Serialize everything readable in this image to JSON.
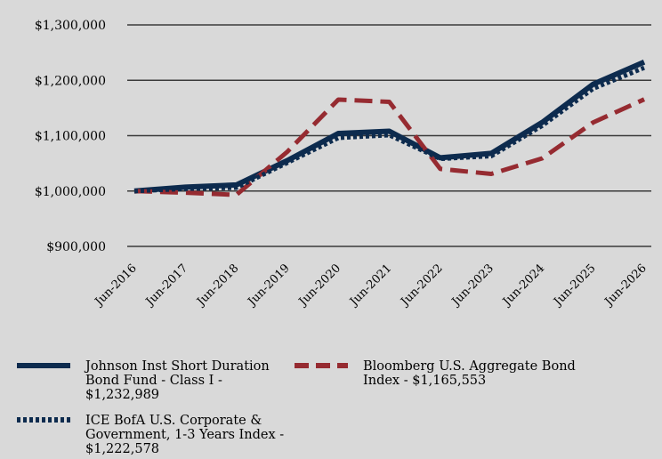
{
  "chart_data": {
    "type": "line",
    "x": [
      "Jun-2016",
      "Jun-2017",
      "Jun-2018",
      "Jun-2019",
      "Jun-2020",
      "Jun-2021",
      "Jun-2022",
      "Jun-2023",
      "Jun-2024",
      "Jun-2025",
      "Jun-2026"
    ],
    "ylim": [
      900000,
      1300000
    ],
    "yticks": [
      "$900,000",
      "$1,000,000",
      "$1,100,000",
      "$1,200,000",
      "$1,300,000"
    ],
    "ytick_values": [
      900000,
      1000000,
      1100000,
      1200000,
      1300000
    ],
    "grid": true,
    "legend_position": "bottom",
    "series": [
      {
        "name": "Johnson Inst Short Duration Bond Fund - Class I - $1,232,989",
        "legend_lines": [
          "Johnson Inst Short Duration",
          "Bond Fund - Class I -",
          "$1,232,989"
        ],
        "color": "#0d2b4e",
        "style": "solid",
        "values": [
          1000000,
          1007000,
          1011000,
          1055000,
          1104000,
          1108000,
          1060000,
          1068000,
          1124000,
          1193000,
          1232989
        ]
      },
      {
        "name": "Bloomberg U.S. Aggregate Bond Index - $1,165,553",
        "legend_lines": [
          "Bloomberg U.S. Aggregate Bond",
          "Index - $1,165,553"
        ],
        "color": "#962b31",
        "style": "dashed",
        "values": [
          1000000,
          997000,
          993000,
          1071000,
          1165000,
          1161000,
          1040000,
          1031000,
          1059000,
          1124000,
          1165553
        ]
      },
      {
        "name": "ICE BofA U.S. Corporate & Government, 1-3 Years Index - $1,222,578",
        "legend_lines": [
          "ICE BofA U.S. Corporate &",
          "Government, 1-3 Years Index -",
          " $1,222,578"
        ],
        "color": "#0d2b4e",
        "style": "dotted",
        "values": [
          1000000,
          1004000,
          1006000,
          1051000,
          1096000,
          1101000,
          1058000,
          1063000,
          1118000,
          1185000,
          1222578
        ]
      }
    ]
  }
}
